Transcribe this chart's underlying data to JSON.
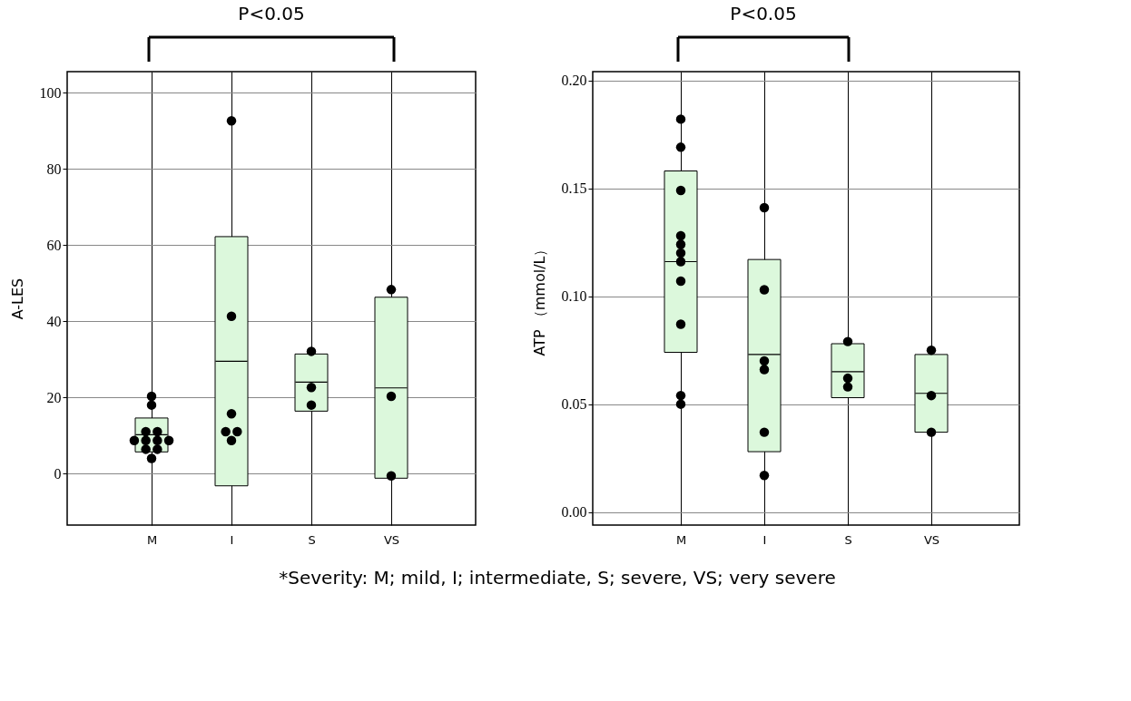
{
  "chart_data": [
    {
      "type": "box",
      "ylabel": "A-LES",
      "categories": [
        "M",
        "I",
        "S",
        "VS"
      ],
      "series": [
        {
          "color": "#dcf8dc",
          "boxes": [
            {
              "low": 5.7,
              "q1": 5.7,
              "median": 10.2,
              "q3": 14.6,
              "high": 14.6
            },
            {
              "low": -3.2,
              "q1": -3.2,
              "median": 29.5,
              "q3": 62.2,
              "high": 62.2
            },
            {
              "low": 16.4,
              "q1": 16.4,
              "median": 24.0,
              "q3": 31.4,
              "high": 31.4
            },
            {
              "low": -1.2,
              "q1": -1.2,
              "median": 22.5,
              "q3": 46.3,
              "high": 46.3
            }
          ]
        },
        {
          "type": "scatter",
          "color": "#000000",
          "x": [
            "M",
            "M",
            "M",
            "M",
            "M",
            "M",
            "M",
            "M",
            "M",
            "M",
            "M",
            "I",
            "I",
            "I",
            "I",
            "I",
            "I",
            "S",
            "S",
            "S",
            "VS",
            "VS",
            "VS"
          ],
          "values": [
            20.3,
            18.0,
            11.0,
            11.0,
            8.7,
            8.7,
            8.7,
            8.7,
            6.4,
            6.4,
            4.0,
            92.6,
            41.3,
            15.7,
            11.0,
            11.0,
            8.7,
            32.1,
            22.6,
            18.0,
            48.3,
            20.3,
            -0.6
          ]
        }
      ],
      "ylim": [
        -13.5,
        105.5
      ],
      "yticks": [
        0,
        20,
        40,
        60,
        80,
        100
      ],
      "grid": true,
      "marker": "circle",
      "annotations": [
        "P<0.05"
      ]
    },
    {
      "type": "box",
      "ylabel": "ATP （mmol/L）",
      "categories": [
        "M",
        "I",
        "S",
        "VS"
      ],
      "series": [
        {
          "color": "#dcf8dc",
          "boxes": [
            {
              "low": 0.074,
              "q1": 0.074,
              "median": 0.116,
              "q3": 0.158,
              "high": 0.158
            },
            {
              "low": 0.028,
              "q1": 0.028,
              "median": 0.073,
              "q3": 0.117,
              "high": 0.117
            },
            {
              "low": 0.053,
              "q1": 0.053,
              "median": 0.065,
              "q3": 0.078,
              "high": 0.078
            },
            {
              "low": 0.037,
              "q1": 0.037,
              "median": 0.055,
              "q3": 0.073,
              "high": 0.073
            }
          ]
        },
        {
          "type": "scatter",
          "color": "#000000",
          "x": [
            "M",
            "M",
            "M",
            "M",
            "M",
            "M",
            "M",
            "M",
            "M",
            "M",
            "M",
            "I",
            "I",
            "I",
            "I",
            "I",
            "I",
            "S",
            "S",
            "S",
            "VS",
            "VS",
            "VS"
          ],
          "values": [
            0.182,
            0.169,
            0.149,
            0.128,
            0.124,
            0.12,
            0.116,
            0.107,
            0.087,
            0.054,
            0.05,
            0.141,
            0.103,
            0.07,
            0.066,
            0.037,
            0.017,
            0.079,
            0.062,
            0.058,
            0.075,
            0.054,
            0.037
          ]
        }
      ],
      "ylim": [
        -0.006,
        0.204
      ],
      "yticks": [
        {
          "value": 0,
          "label": "0.00"
        },
        0.05,
        {
          "value": 0.1,
          "label": "0.10"
        },
        0.15,
        {
          "value": 0.2,
          "label": "0.20"
        }
      ],
      "grid": true,
      "marker": "circle",
      "annotations": [
        "P<0.05",
        "*Severity: M; mild, I; intermediate, S; severe, VS; very severe"
      ]
    }
  ]
}
